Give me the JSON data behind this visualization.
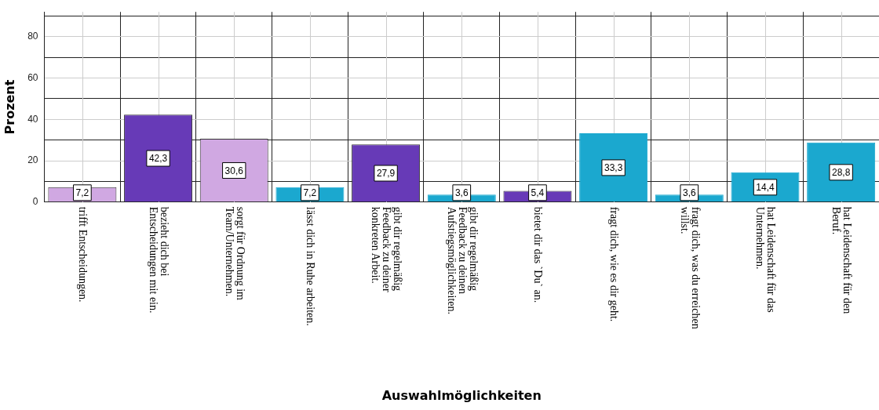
{
  "chart_data": {
    "type": "bar",
    "xlabel": "Auswahlmöglichkeiten",
    "ylabel": "Prozent",
    "categories": [
      "trifft Entscheidungen.",
      "bezieht dich bei\nEntscheidungen mit ein.",
      "sorgt für Ordnung im\nTeam/Unternehmen.",
      "lässt dich in Ruhe arbeiten.",
      "gibt dir regelmäßig\nFeedback zu deiner\nkonkreten Arbeit.",
      "gibt dir regelmäßig\nFeedback zu deinen\nAufstiegsmöglichkeiten.",
      "bietet dir das `Du` an.",
      "fragt dich, wie es dir geht.",
      "fragt dich, was du erreichen\nwillst.",
      "hat Leidenschaft für das\nUnternehmen.",
      "hat Leidenschaft für den\nBeruf."
    ],
    "values": [
      7.2,
      42.3,
      30.6,
      7.2,
      27.9,
      3.6,
      5.4,
      33.3,
      3.6,
      14.4,
      28.8
    ],
    "value_labels": [
      "7,2",
      "42,3",
      "30,6",
      "7,2",
      "27,9",
      "3,6",
      "5,4",
      "33,3",
      "3,6",
      "14,4",
      "28,8"
    ],
    "colors": [
      "#d0a8e2",
      "#673ab7",
      "#d0a8e2",
      "#1ba8cf",
      "#673ab7",
      "#1ba8cf",
      "#673ab7",
      "#1ba8cf",
      "#1ba8cf",
      "#1ba8cf",
      "#1ba8cf"
    ],
    "ylim": [
      0,
      92
    ],
    "yticks": [
      0,
      {
        "value": 10,
        "label": null
      },
      20,
      {
        "value": 30,
        "label": null
      },
      40,
      {
        "value": 50,
        "label": null
      },
      60,
      {
        "value": 70,
        "label": null
      },
      80,
      {
        "value": 90,
        "label": null
      }
    ],
    "grid": true,
    "legend": false
  }
}
